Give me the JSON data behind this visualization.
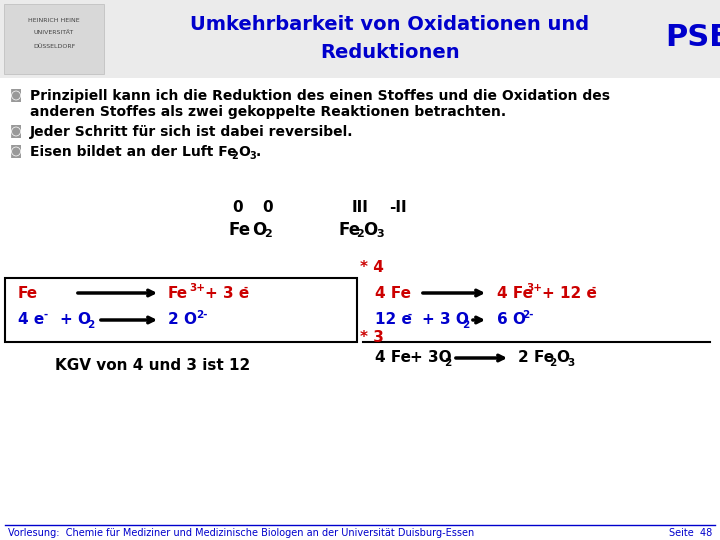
{
  "title_line1": "Umkehrbarkeit von Oxidationen und",
  "title_line2": "Reduktionen",
  "title_color": "#0000CC",
  "pse_text": "PSE",
  "pse_color": "#0000CC",
  "bg_color": "#FFFFFF",
  "black_color": "#000000",
  "red_color": "#CC0000",
  "blue_color": "#0000CC",
  "footer_text": "Vorlesung:  Chemie für Mediziner und Medizinische Biologen an der Universität Duisburg-Essen",
  "footer_right": "Seite  48",
  "footer_color": "#0000CC"
}
